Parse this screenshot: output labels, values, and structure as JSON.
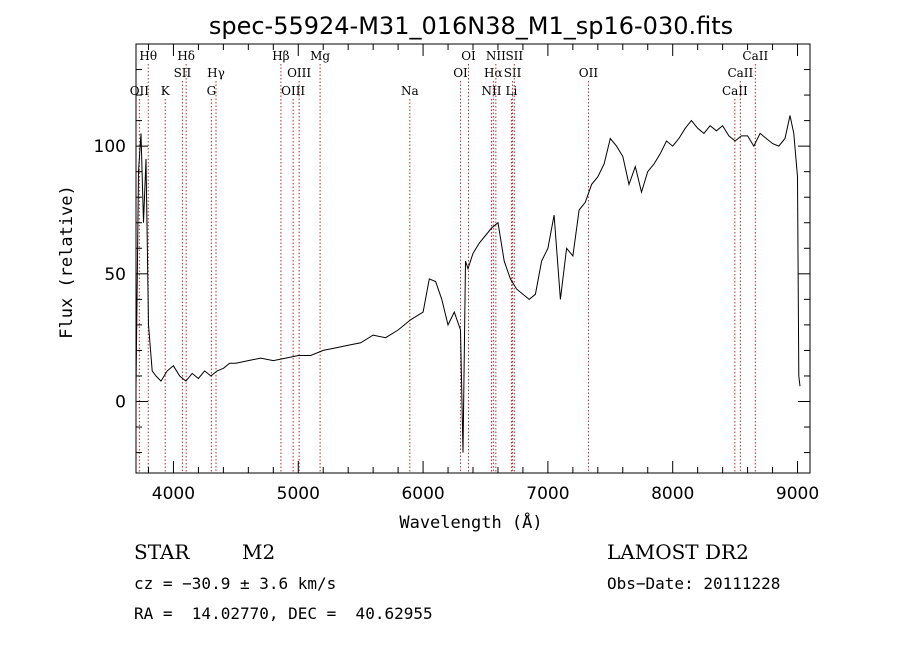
{
  "chart_data": {
    "type": "line",
    "title": "spec-55924-M31_016N38_M1_sp16-030.fits",
    "xlabel": "Wavelength (Å)",
    "ylabel": "Flux (relative)",
    "xlim": [
      3700,
      9100
    ],
    "ylim": [
      -28,
      140
    ],
    "x_ticks": [
      4000,
      5000,
      6000,
      7000,
      8000,
      9000
    ],
    "y_ticks": [
      0,
      50,
      100
    ],
    "grid": false,
    "series": [
      {
        "x": [
          3700,
          3720,
          3740,
          3760,
          3780,
          3800,
          3830,
          3860,
          3900,
          3950,
          4000,
          4050,
          4100,
          4150,
          4200,
          4250,
          4300,
          4350,
          4400,
          4450,
          4500,
          4600,
          4700,
          4800,
          4900,
          5000,
          5100,
          5200,
          5300,
          5400,
          5500,
          5600,
          5700,
          5800,
          5900,
          6000,
          6050,
          6100,
          6150,
          6200,
          6250,
          6300,
          6320,
          6340,
          6360,
          6400,
          6450,
          6500,
          6550,
          6600,
          6650,
          6700,
          6750,
          6800,
          6850,
          6900,
          6950,
          7000,
          7050,
          7100,
          7150,
          7200,
          7250,
          7300,
          7350,
          7400,
          7450,
          7500,
          7550,
          7600,
          7650,
          7700,
          7750,
          7800,
          7850,
          7900,
          7950,
          8000,
          8050,
          8100,
          8150,
          8200,
          8250,
          8300,
          8350,
          8400,
          8450,
          8500,
          8550,
          8600,
          8650,
          8700,
          8750,
          8800,
          8850,
          8900,
          8940,
          8970,
          9000,
          9010,
          9020
        ],
        "y": [
          5,
          90,
          105,
          70,
          95,
          30,
          12,
          10,
          8,
          12,
          14,
          10,
          8,
          11,
          9,
          12,
          10,
          12,
          13,
          15,
          15,
          16,
          17,
          16,
          17,
          18,
          18,
          20,
          21,
          22,
          23,
          26,
          25,
          28,
          32,
          35,
          48,
          47,
          40,
          30,
          35,
          28,
          -20,
          55,
          52,
          58,
          62,
          65,
          68,
          70,
          55,
          48,
          44,
          42,
          40,
          42,
          55,
          60,
          73,
          40,
          60,
          57,
          75,
          78,
          85,
          88,
          93,
          103,
          100,
          96,
          85,
          92,
          82,
          90,
          93,
          97,
          102,
          100,
          103,
          107,
          110,
          107,
          105,
          108,
          106,
          108,
          104,
          102,
          104,
          104,
          100,
          105,
          103,
          101,
          100,
          103,
          112,
          105,
          88,
          10,
          6
        ]
      }
    ],
    "line_markers": [
      {
        "label": "OII",
        "x": 3727,
        "row": 3
      },
      {
        "label": "Hθ",
        "x": 3798,
        "row": 1
      },
      {
        "label": "K",
        "x": 3934,
        "row": 3
      },
      {
        "label": "SII",
        "x": 4072,
        "row": 2
      },
      {
        "label": "Hδ",
        "x": 4102,
        "row": 1
      },
      {
        "label": "G",
        "x": 4304,
        "row": 3
      },
      {
        "label": "Hγ",
        "x": 4341,
        "row": 2
      },
      {
        "label": "Hβ",
        "x": 4861,
        "row": 1
      },
      {
        "label": "OIII",
        "x": 4959,
        "row": 3
      },
      {
        "label": "OIII",
        "x": 5007,
        "row": 2
      },
      {
        "label": "Mg",
        "x": 5175,
        "row": 1
      },
      {
        "label": "Na",
        "x": 5894,
        "row": 3
      },
      {
        "label": "OI",
        "x": 6300,
        "row": 2
      },
      {
        "label": "OI",
        "x": 6364,
        "row": 1
      },
      {
        "label": "NII",
        "x": 6548,
        "row": 3
      },
      {
        "label": "Hα",
        "x": 6563,
        "row": 2
      },
      {
        "label": "NII",
        "x": 6583,
        "row": 1
      },
      {
        "label": "Li",
        "x": 6708,
        "row": 3
      },
      {
        "label": "SII",
        "x": 6717,
        "row": 2
      },
      {
        "label": "SII",
        "x": 6731,
        "row": 1
      },
      {
        "label": "OII",
        "x": 7325,
        "row": 2
      },
      {
        "label": "CaII",
        "x": 8498,
        "row": 3
      },
      {
        "label": "CaII",
        "x": 8542,
        "row": 2
      },
      {
        "label": "CaII",
        "x": 8662,
        "row": 1
      }
    ],
    "colors": {
      "spectrum": "#000000",
      "marker": "#b03030",
      "axis": "#000000"
    }
  },
  "info": {
    "class": "STAR",
    "subclass": "M2",
    "survey": "LAMOST DR2",
    "cz": "cz = −30.9 ± 3.6 km/s",
    "obs_date": "Obs−Date: 20111228",
    "radec": "RA =  14.02770, DEC =  40.62955"
  }
}
